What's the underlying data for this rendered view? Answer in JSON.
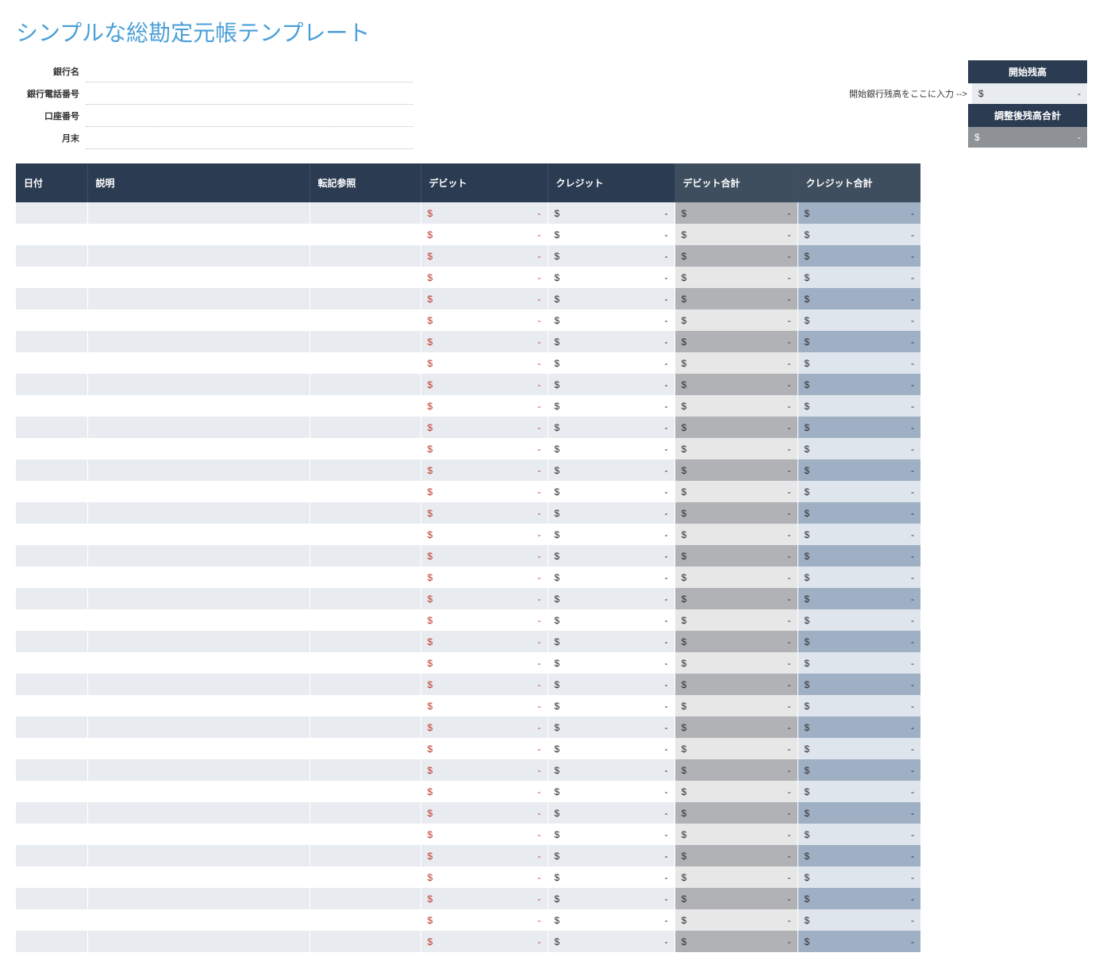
{
  "title": "シンプルな総勘定元帳テンプレート",
  "info_labels": {
    "bank_name": "銀行名",
    "bank_phone": "銀行電話番号",
    "account_no": "口座番号",
    "month_end": "月末"
  },
  "info_values": {
    "bank_name": "",
    "bank_phone": "",
    "account_no": "",
    "month_end": ""
  },
  "balance_note": "開始銀行残高をここに入力 -->",
  "balance": {
    "start_header": "開始残高",
    "start_currency": "$",
    "start_dash": "-",
    "adjusted_header": "調整後残高合計",
    "adjusted_currency": "$",
    "adjusted_dash": "-"
  },
  "columns": {
    "date": "日付",
    "desc": "説明",
    "ref": "転記参照",
    "debit": "デビット",
    "credit": "クレジット",
    "debit_sum": "デビット合計",
    "credit_sum": "クレジット合計"
  },
  "row_count": 35,
  "cell_currency": "$",
  "cell_dash": "-",
  "colors": {
    "title": "#4a9fd8",
    "header_bg": "#2a3b52",
    "header_sum_bg": "#3e4e5e",
    "row_even": "#e8ecf1",
    "row_odd": "#ffffff",
    "debsum_even": "#b0b2b6",
    "debsum_odd": "#e7e7e7",
    "credsum_even": "#9fb0c4",
    "credsum_odd": "#dfe5ec",
    "debit_text": "#c0392b",
    "balance_grey": "#8e9196"
  }
}
